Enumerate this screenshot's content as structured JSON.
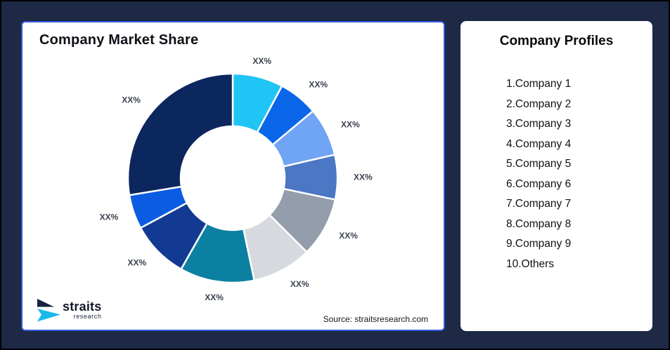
{
  "page": {
    "background_color": "#1d2945",
    "frame_border_color": "#000000"
  },
  "chart_panel": {
    "title": "Company Market Share",
    "source_note": "Source: straitsresearch.com",
    "border_color": "#3156db",
    "logo": {
      "name": "straits",
      "subtitle": "research",
      "navy_color": "#16233f",
      "cyan_color": "#1ab9ea"
    }
  },
  "profiles_panel": {
    "title": "Company Profiles",
    "items": [
      "1.Company 1",
      "2.Company 2",
      "3.Company 3",
      "4.Company 4",
      "5.Company 5",
      "6.Company 6",
      "7.Company 7",
      "8.Company 8",
      "9.Company 9",
      "10.Others"
    ]
  },
  "chart_data": {
    "type": "pie",
    "subtype": "donut",
    "title": "Company Market Share",
    "value_labels_shown": "placeholder",
    "label_color": "#3c4250",
    "gap_color": "#ffffff",
    "segments": [
      {
        "name": "Company 1",
        "label": "XX%",
        "value": 7.8,
        "color": "#20c4f5"
      },
      {
        "name": "Company 2",
        "label": "XX%",
        "value": 6.1,
        "color": "#0a66e8"
      },
      {
        "name": "Company 3",
        "label": "XX%",
        "value": 7.5,
        "color": "#70a4f4"
      },
      {
        "name": "Company 4",
        "label": "XX%",
        "value": 6.9,
        "color": "#4b77c5"
      },
      {
        "name": "Company 5",
        "label": "XX%",
        "value": 9.2,
        "color": "#949dac"
      },
      {
        "name": "Company 6",
        "label": "XX%",
        "value": 9.2,
        "color": "#d6d9de"
      },
      {
        "name": "Company 7",
        "label": "XX%",
        "value": 11.5,
        "color": "#0c80a1"
      },
      {
        "name": "Company 8",
        "label": "XX%",
        "value": 8.9,
        "color": "#123a92"
      },
      {
        "name": "Company 9",
        "label": "XX%",
        "value": 5.3,
        "color": "#0c5ce2"
      },
      {
        "name": "Others",
        "label": "XX%",
        "value": 27.6,
        "color": "#0c265e"
      }
    ]
  }
}
